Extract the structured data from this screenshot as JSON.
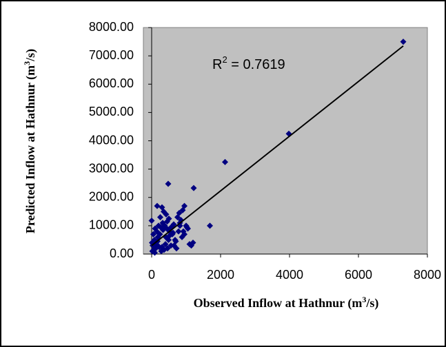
{
  "chart_data": {
    "type": "scatter",
    "x_label": [
      "Observed Inflow at Hathnur (m",
      "3",
      "/s)"
    ],
    "y_label": [
      "Predicted Inflow at Hathnur (m",
      "3",
      "/s)"
    ],
    "annotation": [
      "R",
      "2",
      " = 0.7619"
    ],
    "xlim": [
      0,
      8000
    ],
    "ylim": [
      0,
      8000
    ],
    "xticks": [
      0,
      2000,
      4000,
      6000,
      8000
    ],
    "yticks": [
      {
        "value": 0,
        "label": "0.00"
      },
      {
        "value": 1000,
        "label": "1000.00"
      },
      {
        "value": 2000,
        "label": "2000.00"
      },
      {
        "value": 3000,
        "label": "3000.00"
      },
      {
        "value": 4000,
        "label": "4000.00"
      },
      {
        "value": 5000,
        "label": "5000.00"
      },
      {
        "value": 6000,
        "label": "6000.00"
      },
      {
        "value": 7000,
        "label": "7000.00"
      },
      {
        "value": 8000,
        "label": "8000.00"
      }
    ],
    "series": [
      {
        "color": "#000080",
        "x": [
          7300,
          3980,
          2130,
          1690,
          480,
          1220,
          1150,
          0,
          160,
          300,
          350,
          420,
          500,
          450,
          250,
          200,
          100,
          50,
          80,
          150,
          30,
          120,
          180,
          260,
          320,
          380,
          440,
          520,
          600,
          650,
          700,
          750,
          800,
          850,
          900,
          950,
          1000,
          1050,
          1100,
          1200,
          880,
          780,
          680,
          560,
          460,
          360,
          280,
          220,
          140,
          60,
          20,
          10,
          90,
          170,
          240,
          330,
          410,
          490,
          570,
          640,
          720,
          820,
          920,
          1020,
          300,
          400,
          520,
          620,
          820,
          950
        ],
        "y": [
          7500,
          4250,
          3250,
          1000,
          2480,
          2330,
          300,
          1180,
          1700,
          1650,
          1500,
          1400,
          1250,
          1150,
          1300,
          1000,
          900,
          700,
          500,
          800,
          300,
          200,
          600,
          950,
          1100,
          1000,
          900,
          800,
          700,
          300,
          450,
          1300,
          1450,
          1200,
          1550,
          1700,
          1000,
          900,
          350,
          400,
          600,
          800,
          500,
          300,
          200,
          150,
          100,
          250,
          350,
          150,
          100,
          400,
          50,
          450,
          700,
          850,
          600,
          500,
          950,
          1050,
          200,
          1000,
          800,
          950,
          250,
          350,
          650,
          750,
          1100,
          700
        ]
      }
    ],
    "trendline": {
      "x": [
        0,
        7300
      ],
      "y": [
        300,
        7350
      ],
      "color": "#000000"
    }
  }
}
